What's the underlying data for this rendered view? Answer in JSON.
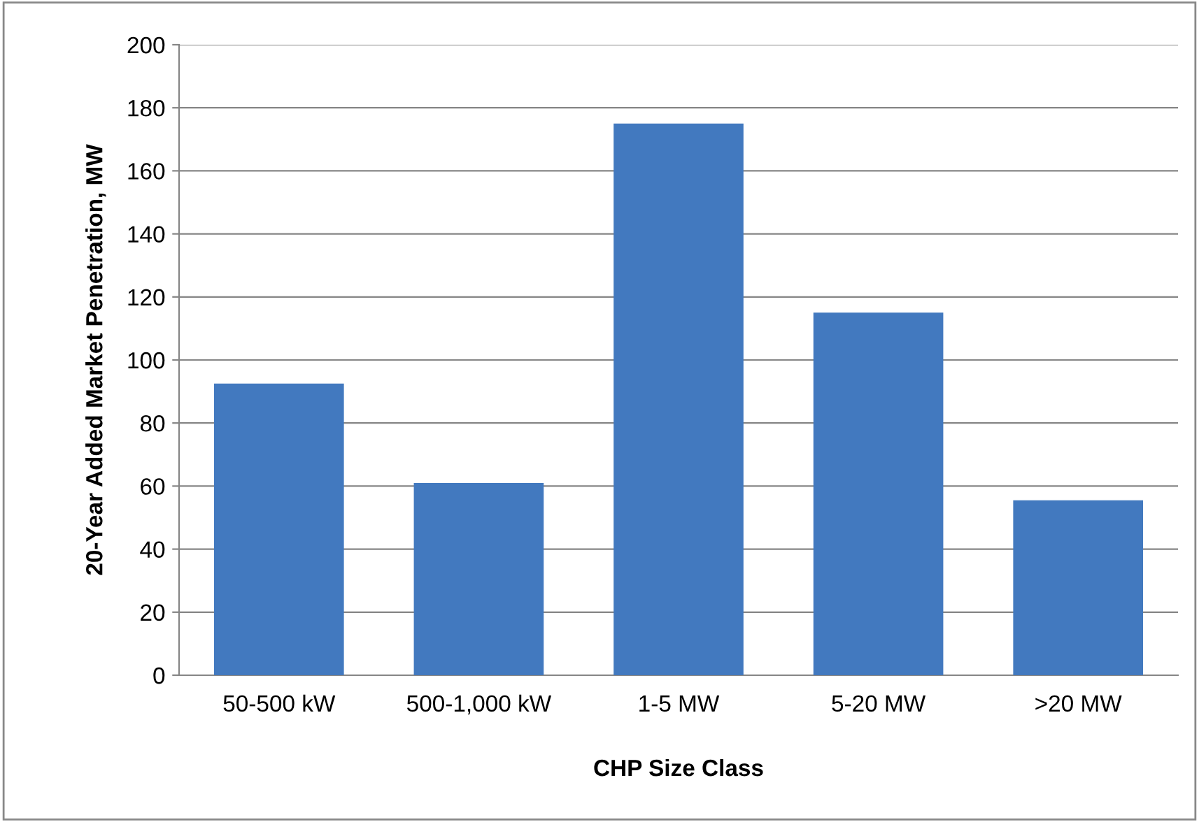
{
  "chart_data": {
    "type": "bar",
    "xlabel": "CHP Size Class",
    "ylabel": "20-Year Added Market Penetration, MW",
    "categories": [
      "50-500 kW",
      "500-1,000 kW",
      "1-5 MW",
      "5-20 MW",
      ">20 MW"
    ],
    "values": [
      92.5,
      61,
      175,
      115,
      55.5
    ],
    "color": "#4279bf",
    "ylim": [
      0,
      200
    ],
    "yticks": [
      0,
      20,
      40,
      60,
      80,
      100,
      120,
      140,
      160,
      180,
      200
    ],
    "grid": "y",
    "legend": false
  }
}
